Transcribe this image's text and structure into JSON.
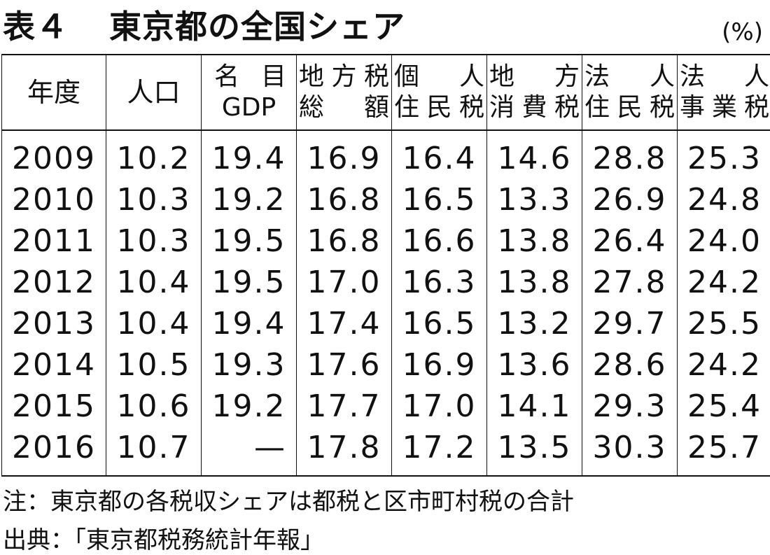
{
  "title": {
    "number": "表４",
    "text": "東京都の全国シェア"
  },
  "unit": "(%)",
  "table": {
    "headers": [
      {
        "lines": [
          "年度"
        ]
      },
      {
        "lines": [
          "人口"
        ]
      },
      {
        "lines": [
          "名 目",
          "GDP"
        ]
      },
      {
        "lines": [
          "地方税",
          "総 額"
        ]
      },
      {
        "lines": [
          "個 人",
          "住民税"
        ]
      },
      {
        "lines": [
          "地 方",
          "消費税"
        ]
      },
      {
        "lines": [
          "法 人",
          "住民税"
        ]
      },
      {
        "lines": [
          "法 人",
          "事業税"
        ]
      }
    ],
    "rows": [
      [
        "2009",
        "10.2",
        "19.4",
        "16.9",
        "16.4",
        "14.6",
        "28.8",
        "25.3"
      ],
      [
        "2010",
        "10.3",
        "19.2",
        "16.8",
        "16.5",
        "13.3",
        "26.9",
        "24.8"
      ],
      [
        "2011",
        "10.3",
        "19.5",
        "16.8",
        "16.6",
        "13.8",
        "26.4",
        "24.0"
      ],
      [
        "2012",
        "10.4",
        "19.5",
        "17.0",
        "16.3",
        "13.8",
        "27.8",
        "24.2"
      ],
      [
        "2013",
        "10.4",
        "19.4",
        "17.4",
        "16.5",
        "13.2",
        "29.7",
        "25.5"
      ],
      [
        "2014",
        "10.5",
        "19.3",
        "17.6",
        "16.9",
        "13.6",
        "28.6",
        "24.2"
      ],
      [
        "2015",
        "10.6",
        "19.2",
        "17.7",
        "17.0",
        "14.1",
        "29.3",
        "25.4"
      ],
      [
        "2016",
        "10.7",
        "—",
        "17.8",
        "17.2",
        "13.5",
        "30.3",
        "25.7"
      ]
    ]
  },
  "note": "注：東京都の各税収シェアは都税と区市町村税の合計",
  "source": "出典：「東京都税務統計年報」"
}
